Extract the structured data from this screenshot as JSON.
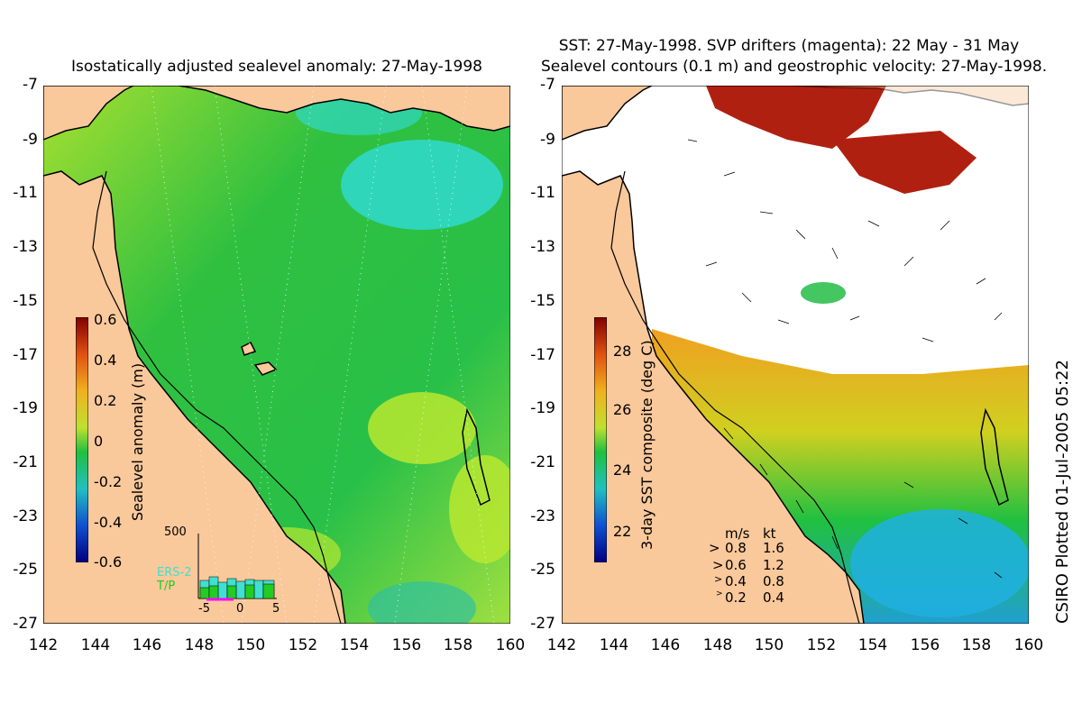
{
  "left_panel": {
    "title": "Isostatically adjusted sealevel anomaly: 27-May-1998",
    "colorbar_label": "Sealevel anomaly (m)",
    "colorbar_ticks": [
      "0.6",
      "0.4",
      "0.2",
      "0",
      "-0.2",
      "-0.4",
      "-0.6"
    ],
    "inset": {
      "ymax_label": "500",
      "legend": [
        "ERS-2",
        "T/P"
      ],
      "legend_colors": [
        "#40e0d0",
        "#22cc22"
      ],
      "xticks": [
        "-5",
        "0",
        "5"
      ]
    }
  },
  "right_panel": {
    "title_line1": "SST: 27-May-1998. SVP drifters (magenta): 22 May - 31 May",
    "title_line2": "Sealevel contours (0.1 m) and geostrophic velocity: 27-May-1998.",
    "colorbar_label": "3-day SST composite (deg C)",
    "colorbar_ticks": [
      "28",
      "26",
      "24",
      "22"
    ],
    "velocity_key": {
      "header_ms": "m/s",
      "header_kt": "kt",
      "rows": [
        {
          "ms": "0.8",
          "kt": "1.6"
        },
        {
          "ms": "0.6",
          "kt": "1.2"
        },
        {
          "ms": "0.4",
          "kt": "0.8"
        },
        {
          "ms": "0.2",
          "kt": "0.4"
        }
      ]
    }
  },
  "axes": {
    "lat_ticks": [
      "-7",
      "-9",
      "-11",
      "-13",
      "-15",
      "-17",
      "-19",
      "-21",
      "-23",
      "-25",
      "-27"
    ],
    "lon_ticks": [
      "142",
      "144",
      "146",
      "148",
      "150",
      "152",
      "154",
      "156",
      "158",
      "160"
    ]
  },
  "credit": "CSIRO Plotted 01-Jul-2005 05:22",
  "colors": {
    "land": "#f9c89b",
    "sea_green": "#22c23c",
    "sea_cyan": "#30d8c8",
    "sea_yellowgreen": "#b8e830",
    "sst_red": "#b02010",
    "sst_orange": "#f0a020"
  }
}
